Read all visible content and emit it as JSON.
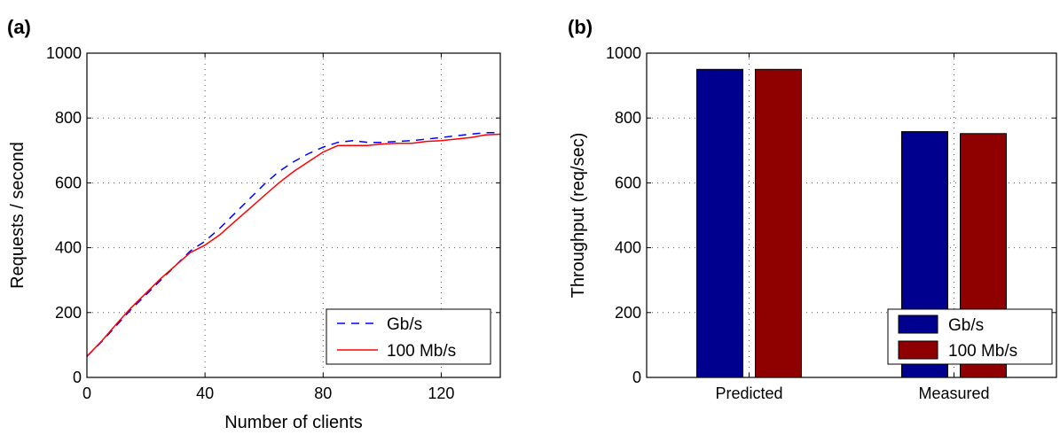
{
  "chart_data": [
    {
      "type": "line",
      "panel_label": "(a)",
      "xlabel": "Number of clients",
      "ylabel": "Requests / second",
      "xlim": [
        0,
        140
      ],
      "ylim": [
        0,
        1000
      ],
      "xticks": [
        "0",
        "40",
        "80",
        "120"
      ],
      "yticks": [
        "0",
        "200",
        "400",
        "600",
        "800",
        "1000"
      ],
      "grid": true,
      "legend_position": "bottom-right",
      "series": [
        {
          "name": "Gb/s",
          "style": "dashed",
          "color": "#0000ff",
          "x": [
            0,
            5,
            10,
            15,
            20,
            25,
            30,
            35,
            40,
            45,
            50,
            55,
            60,
            65,
            70,
            75,
            80,
            85,
            90,
            95,
            100,
            105,
            110,
            115,
            120,
            125,
            130,
            135,
            140
          ],
          "y": [
            65,
            110,
            160,
            210,
            255,
            300,
            345,
            390,
            420,
            460,
            505,
            550,
            595,
            635,
            665,
            690,
            710,
            725,
            730,
            725,
            725,
            728,
            730,
            735,
            740,
            745,
            750,
            755,
            755
          ]
        },
        {
          "name": "100 Mb/s",
          "style": "solid",
          "color": "#ff0000",
          "x": [
            0,
            5,
            10,
            15,
            20,
            25,
            30,
            35,
            40,
            45,
            50,
            55,
            60,
            65,
            70,
            75,
            80,
            85,
            90,
            95,
            100,
            105,
            110,
            115,
            120,
            125,
            130,
            135,
            140
          ],
          "y": [
            65,
            112,
            165,
            215,
            260,
            305,
            345,
            385,
            408,
            440,
            480,
            520,
            560,
            600,
            635,
            665,
            695,
            715,
            715,
            715,
            720,
            722,
            722,
            728,
            730,
            735,
            740,
            748,
            750
          ]
        }
      ]
    },
    {
      "type": "bar",
      "panel_label": "(b)",
      "xlabel": "",
      "ylabel": "Throughput (req/sec)",
      "categories": [
        "Predicted",
        "Measured"
      ],
      "ylim": [
        0,
        1000
      ],
      "yticks": [
        "0",
        "200",
        "400",
        "600",
        "800",
        "1000"
      ],
      "grid": true,
      "legend_position": "bottom-right",
      "series": [
        {
          "name": "Gb/s",
          "color": "#00008f",
          "values": [
            950,
            758
          ]
        },
        {
          "name": "100 Mb/s",
          "color": "#8f0000",
          "values": [
            950,
            752
          ]
        }
      ]
    }
  ]
}
